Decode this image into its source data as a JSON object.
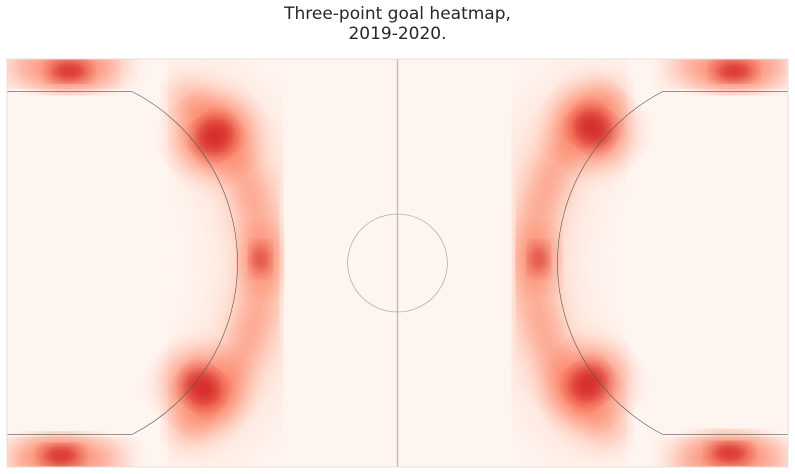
{
  "chart_data": {
    "type": "heatmap",
    "title": [
      "Three-point goal heatmap,",
      "2019-2020."
    ],
    "xlabel": "",
    "ylabel": "",
    "grid": false,
    "colormap": "Reds",
    "colors": {
      "low": "#fff5f0",
      "mid": "#fb6a4a",
      "high": "#cb181d",
      "court_line": "#555555",
      "frame": "#e0e0e0",
      "halfcourt_line": "#c8b8b8"
    },
    "court": {
      "length_ft": 94,
      "width_ft": 50,
      "three_point_arc_radius_ft": 23.75,
      "corner_line_offset_ft": 4,
      "hoop_distance_ft": 4,
      "center_circle_radius_ft": 6
    },
    "hotspots": [
      {
        "zone": "left-top-corner",
        "x": 7.5,
        "y": 1.5,
        "intensity": 1.0
      },
      {
        "zone": "left-bottom-corner",
        "x": 6.5,
        "y": 48.6,
        "intensity": 1.0
      },
      {
        "zone": "left-upper-wing",
        "x": 25.0,
        "y": 9.5,
        "intensity": 0.9
      },
      {
        "zone": "left-lower-wing",
        "x": 23.5,
        "y": 40.3,
        "intensity": 0.9
      },
      {
        "zone": "left-top-key",
        "x": 30.5,
        "y": 24.5,
        "intensity": 0.7
      },
      {
        "zone": "right-top-corner",
        "x": 87.5,
        "y": 1.5,
        "intensity": 1.0
      },
      {
        "zone": "right-bottom-corner",
        "x": 87.0,
        "y": 48.3,
        "intensity": 1.0
      },
      {
        "zone": "right-upper-wing",
        "x": 70.5,
        "y": 8.5,
        "intensity": 0.9
      },
      {
        "zone": "right-lower-wing",
        "x": 70.0,
        "y": 39.8,
        "intensity": 0.9
      },
      {
        "zone": "right-top-key",
        "x": 64.0,
        "y": 24.5,
        "intensity": 0.7
      }
    ]
  }
}
